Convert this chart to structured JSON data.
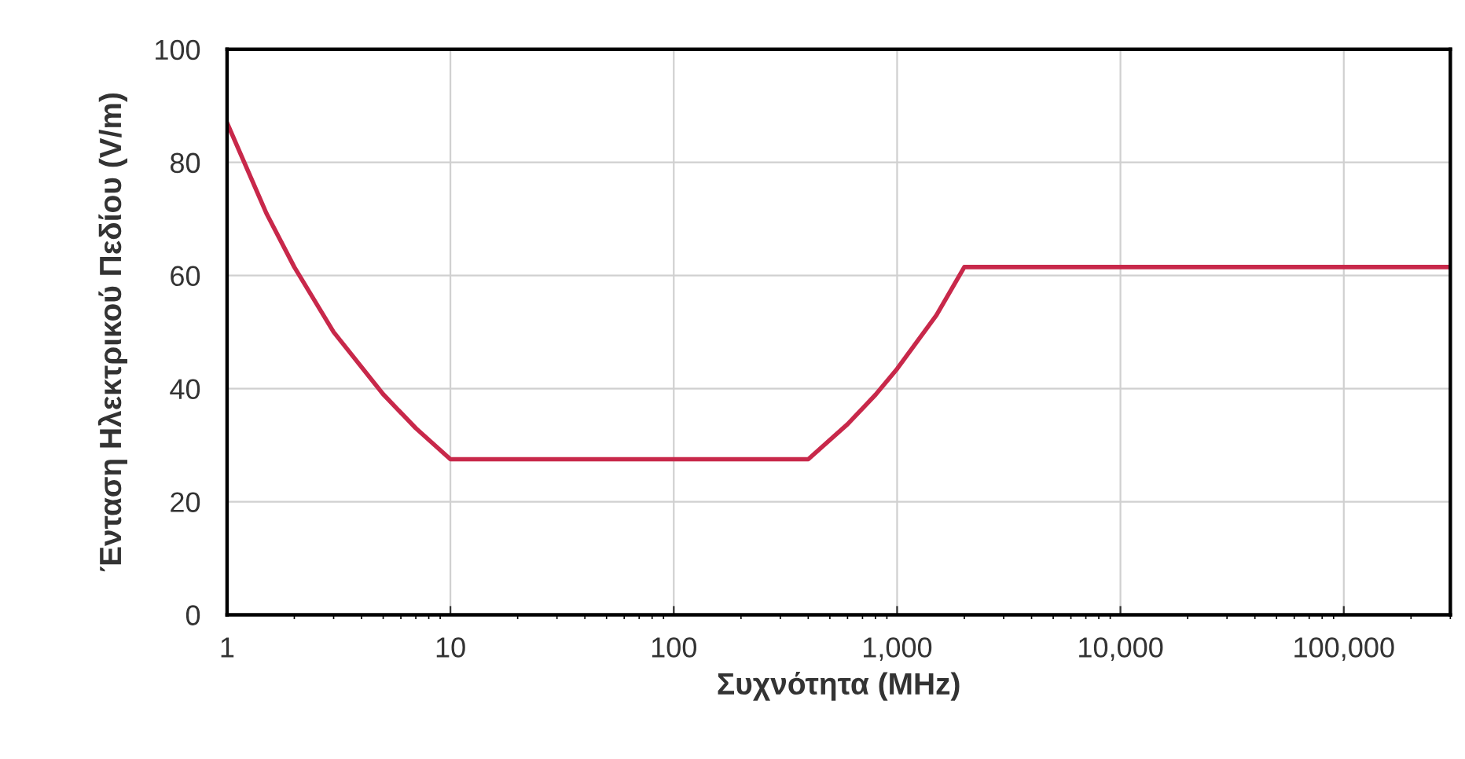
{
  "chart_data": {
    "type": "line",
    "xlabel": "Συχνότητα (MHz)",
    "ylabel": "Ένταση Ηλεκτρικού Πεδίου (V/m)",
    "log": "x",
    "grid": true,
    "marker": "none",
    "line_style": "solid",
    "xlim": [
      1,
      300000
    ],
    "xticks": [
      1,
      10,
      100,
      {
        "value": 1000,
        "label": "1,000"
      },
      {
        "value": 10000,
        "label": "10,000"
      },
      {
        "value": 100000,
        "label": "100,000"
      }
    ],
    "ylim": [
      0,
      100
    ],
    "yticks": [
      0,
      20,
      40,
      60,
      80,
      100
    ],
    "series": [
      {
        "color": "#c8284a",
        "x": [
          1,
          1.5,
          2,
          3,
          5,
          7,
          10,
          400,
          600,
          800,
          1000,
          1500,
          2000,
          300000
        ],
        "values": [
          87,
          71,
          61.5,
          50,
          39,
          33,
          27.5,
          27.5,
          33.7,
          38.9,
          43.5,
          53,
          61.5,
          61.5
        ]
      }
    ]
  }
}
